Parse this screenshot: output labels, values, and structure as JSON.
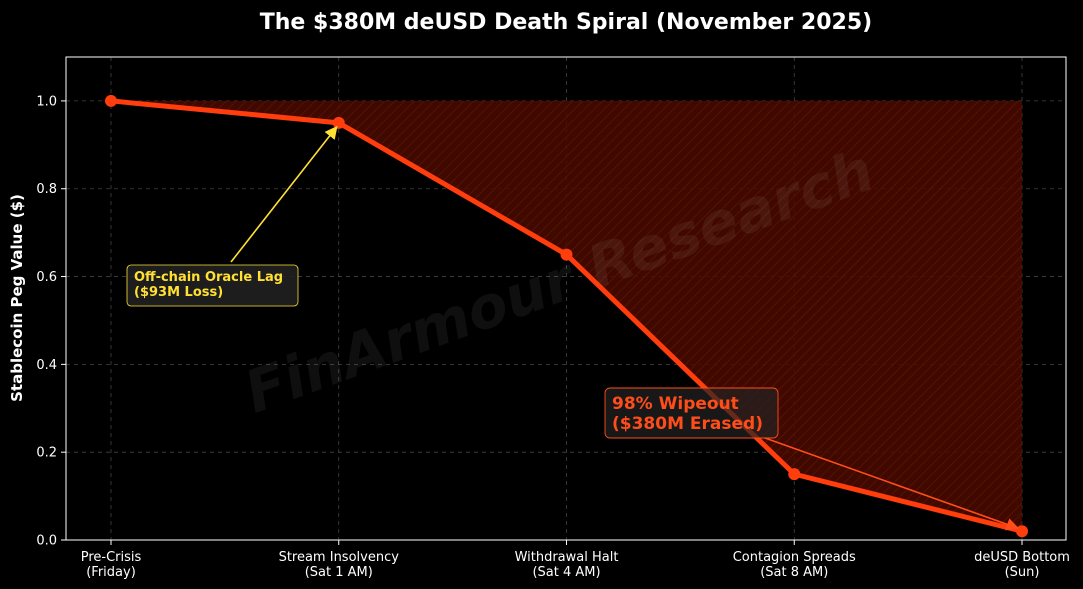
{
  "chart_data": {
    "type": "line",
    "title": "The $380M deUSD Death Spiral (November 2025)",
    "ylabel": "Stablecoin Peg Value ($)",
    "xlabel": "",
    "categories": [
      [
        "Pre-Crisis",
        "(Friday)"
      ],
      [
        "Stream Insolvency",
        "(Sat 1 AM)"
      ],
      [
        "Withdrawal Halt",
        "(Sat 4 AM)"
      ],
      [
        "Contagion Spreads",
        "(Sat 8 AM)"
      ],
      [
        "deUSD Bottom",
        "(Sun)"
      ]
    ],
    "values": [
      1.0,
      0.95,
      0.65,
      0.15,
      0.02
    ],
    "fill_to": 1.0,
    "ylim": [
      0,
      1.1
    ],
    "yticks": [
      0.0,
      0.2,
      0.4,
      0.6,
      0.8,
      1.0
    ],
    "ytick_labels": [
      "0.0",
      "0.2",
      "0.4",
      "0.6",
      "0.8",
      "1.0"
    ],
    "grid": true,
    "annotations": [
      {
        "lines": [
          "Off-chain Oracle Lag",
          "($93M Loss)"
        ],
        "target_index": 1,
        "color": "#ffe033"
      },
      {
        "lines": [
          "98% Wipeout",
          "($380M Erased)"
        ],
        "target_index": 4,
        "color": "#ff4d1a"
      }
    ],
    "watermark": "FinArmour Research",
    "colors": {
      "line": "#ff3d0d",
      "fill": "#4a0a00",
      "hatch": "#7a1a08",
      "background": "#000000",
      "grid": "#444444",
      "axis": "#ffffff",
      "annotation_box": "#222222"
    }
  }
}
